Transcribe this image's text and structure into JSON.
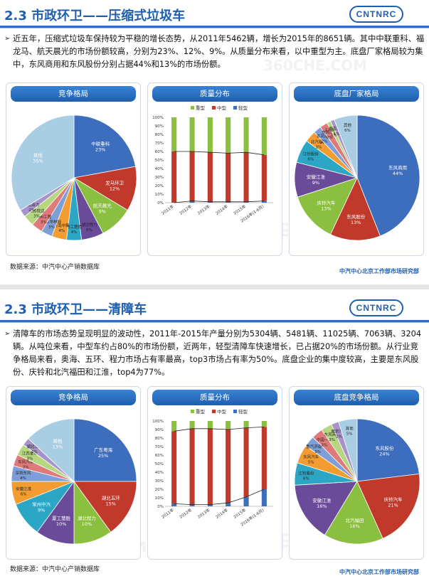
{
  "slide1": {
    "title": "2.3 市政环卫——压缩式垃圾车",
    "logo": "CNTNRC",
    "paragraph": "近五年，压缩式垃圾车保持较为平稳的增长态势，从2011年5462辆，增长为2015年的8651辆。其中中联重科、福龙马、航天晨光的市场份额较高，分别为23%、12%、9%。从质量分布来看，以中重型为主。底盘厂家格局较为集中，东风商用和东风股份分别占据44%和13%的市场份额。",
    "panel_titles": [
      "竞争格局",
      "质量分布",
      "底盘厂家格局"
    ],
    "source": "数据来源：中汽中心产销数据库",
    "org": "中汽中心北京工作部市场研究部"
  },
  "slide2": {
    "title": "2.3 市政环卫——清障车",
    "logo": "CNTNRC",
    "paragraph": "清障车的市场态势呈现明显的波动性，2011年-2015年产量分别为5304辆、5481辆、11025辆、7063辆、3204辆。从吨位来看，中型车约占80%的市场份额，近两年，轻型清障车快速增长，已占据20%的市场份额。从行业竞争格局来看，奥海、五环、程力市场占有率最高，top3市场占有率为50%。底盘企业的集中度较高，主要是东风股份、庆铃和北汽福田和江淮，top4为77%。",
    "panel_titles": [
      "竞争格局",
      "质量分布",
      "底盘竞争格局"
    ],
    "source": "数据来源：中汽中心产销数据库",
    "org": "中汽中心北京工作部市场研究部"
  },
  "watermark": [
    "卡车之家",
    "360CHE.COM"
  ],
  "chart_data": [
    {
      "type": "pie",
      "id": "s1_competition",
      "slices": [
        {
          "label": "中联重科",
          "value": 23,
          "color": "#3d6ebd"
        },
        {
          "label": "龙马环卫",
          "value": 12,
          "color": "#c0392b"
        },
        {
          "label": "航天晨光",
          "value": 9,
          "color": "#8bbf3f"
        },
        {
          "label": "湖北程力",
          "value": 6,
          "color": "#6a4b9a"
        },
        {
          "label": "厦工楚胜",
          "value": 4,
          "color": "#2ba6c4"
        },
        {
          "label": "青岛中集",
          "value": 4,
          "color": "#f39c32"
        },
        {
          "label": "北京华林特",
          "value": 3,
          "color": "#7b9fd6"
        },
        {
          "label": "徐州工程",
          "value": 3,
          "color": "#e07a7a"
        },
        {
          "label": "江苏悦达",
          "value": 3,
          "color": "#b6d77f"
        },
        {
          "label": "湖北合力",
          "value": 2,
          "color": "#a792c9"
        },
        {
          "label": "其他",
          "value": 35,
          "color": "#a9cde3"
        }
      ]
    },
    {
      "type": "line",
      "id": "s1_weight",
      "stacked": true,
      "legend": [
        "重型",
        "中型",
        "轻型"
      ],
      "colors": [
        "#8bbf3f",
        "#c0392b",
        "#3d6ebd"
      ],
      "categories": [
        "2011年",
        "2012年",
        "2013年",
        "2014年",
        "2015年",
        "2016年(1-6月)"
      ],
      "series": [
        {
          "name": "重型",
          "values": [
            40,
            40,
            41,
            42,
            41,
            44
          ]
        },
        {
          "name": "中型",
          "values": [
            60,
            58,
            58,
            57,
            58,
            54
          ]
        },
        {
          "name": "轻型",
          "values": [
            0,
            2,
            1,
            1,
            1,
            2
          ]
        }
      ],
      "ylim": [
        0,
        100
      ],
      "yticks": [
        "0%",
        "10%",
        "20%",
        "30%",
        "40%",
        "50%",
        "60%",
        "70%",
        "80%",
        "90%",
        "100%"
      ]
    },
    {
      "type": "pie",
      "id": "s1_chassis",
      "slices": [
        {
          "label": "东风商用",
          "value": 44,
          "color": "#3d6ebd"
        },
        {
          "label": "东风股份",
          "value": 13,
          "color": "#c0392b"
        },
        {
          "label": "庆铃汽车",
          "value": 13,
          "color": "#8bbf3f"
        },
        {
          "label": "安徽江淮",
          "value": 9,
          "color": "#6a4b9a"
        },
        {
          "label": "江铃股份",
          "value": 6,
          "color": "#2ba6c4"
        },
        {
          "label": "北汽福田",
          "value": 3,
          "color": "#f39c32"
        },
        {
          "label": "东风柳州",
          "value": 2,
          "color": "#7b9fd6"
        },
        {
          "label": "东风汽车",
          "value": 2,
          "color": "#e07a7a"
        },
        {
          "label": "上汽依维柯",
          "value": 1,
          "color": "#b6d77f"
        },
        {
          "label": "南京汽车",
          "value": 1,
          "color": "#a792c9"
        },
        {
          "label": "其他",
          "value": 6,
          "color": "#a9cde3"
        }
      ]
    },
    {
      "type": "pie",
      "id": "s2_competition",
      "slices": [
        {
          "label": "广东粤海",
          "value": 25,
          "color": "#3d6ebd"
        },
        {
          "label": "湖北五环",
          "value": 15,
          "color": "#c0392b"
        },
        {
          "label": "湖北程力",
          "value": 10,
          "color": "#8bbf3f"
        },
        {
          "label": "厦工楚胜",
          "value": 10,
          "color": "#6a4b9a"
        },
        {
          "label": "常州中汽",
          "value": 9,
          "color": "#2ba6c4"
        },
        {
          "label": "安徽江淮",
          "value": 6,
          "color": "#f39c32"
        },
        {
          "label": "深圳东风",
          "value": 4,
          "color": "#7b9fd6"
        },
        {
          "label": "东风汽车",
          "value": 3,
          "color": "#e07a7a"
        },
        {
          "label": "江苏金永",
          "value": 3,
          "color": "#b6d77f"
        },
        {
          "label": "湖北江南",
          "value": 2,
          "color": "#a792c9"
        },
        {
          "label": "其他",
          "value": 13,
          "color": "#a9cde3"
        }
      ]
    },
    {
      "type": "line",
      "id": "s2_weight",
      "stacked": true,
      "legend": [
        "重型",
        "中型",
        "轻型"
      ],
      "colors": [
        "#8bbf3f",
        "#c0392b",
        "#3d6ebd"
      ],
      "categories": [
        "2011年",
        "2012年",
        "2013年",
        "2014年",
        "2015年",
        "2016年(1-6月)"
      ],
      "series": [
        {
          "name": "重型",
          "values": [
            12,
            9,
            9,
            10,
            8,
            7
          ]
        },
        {
          "name": "中型",
          "values": [
            85,
            89,
            89,
            86,
            81,
            73
          ]
        },
        {
          "name": "轻型",
          "values": [
            3,
            2,
            2,
            4,
            11,
            20
          ]
        }
      ],
      "ylim": [
        0,
        100
      ],
      "yticks": [
        "0%",
        "10%",
        "20%",
        "30%",
        "40%",
        "50%",
        "60%",
        "70%",
        "80%",
        "90%",
        "100%"
      ]
    },
    {
      "type": "pie",
      "id": "s2_chassis",
      "slices": [
        {
          "label": "东风股份",
          "value": 24,
          "color": "#3d6ebd"
        },
        {
          "label": "庆铃汽车",
          "value": 21,
          "color": "#c0392b"
        },
        {
          "label": "北汽福田",
          "value": 16,
          "color": "#8bbf3f"
        },
        {
          "label": "安徽江淮",
          "value": 16,
          "color": "#6a4b9a"
        },
        {
          "label": "江铃股份",
          "value": 6,
          "color": "#2ba6c4"
        },
        {
          "label": "东风汽车",
          "value": 5,
          "color": "#f39c32"
        },
        {
          "label": "重汽济南卡车",
          "value": 3,
          "color": "#7b9fd6"
        },
        {
          "label": "中国一汽",
          "value": 3,
          "color": "#e07a7a"
        },
        {
          "label": "东风商用",
          "value": 3,
          "color": "#b6d77f"
        },
        {
          "label": "南京汽车",
          "value": 2,
          "color": "#a792c9"
        },
        {
          "label": "其他",
          "value": 5,
          "color": "#a9cde3"
        }
      ]
    }
  ]
}
